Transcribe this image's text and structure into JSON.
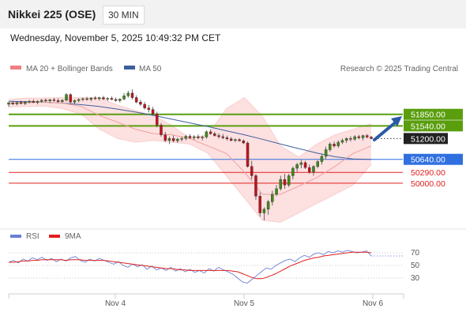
{
  "header": {
    "title": "Nikkei 225 (OSE)",
    "timeframe": "30 MIN",
    "datetime": "Wednesday, November 5, 2025 10:49:32 PM CET"
  },
  "legend": {
    "ma20": "MA 20 + Bollinger Bands",
    "ma50": "MA 50",
    "credit": "Research © 2025 Trading Central",
    "ma20_color": "#f08080",
    "ma50_color": "#3e5f9e"
  },
  "levels": [
    {
      "label": "51850.00",
      "value": 51850,
      "color": "#5a9e0e",
      "style": "green"
    },
    {
      "label": "51540.00",
      "value": 51540,
      "color": "#5a9e0e",
      "style": "green"
    },
    {
      "label": "51200.00",
      "value": 51200,
      "color": "#222222",
      "style": "current"
    },
    {
      "label": "50640.00",
      "value": 50640,
      "color": "#2f6fe0",
      "style": "blue"
    },
    {
      "label": "50290.00",
      "value": 50290,
      "color": "#e0201e",
      "style": "red"
    },
    {
      "label": "50000.00",
      "value": 50000,
      "color": "#e0201e",
      "style": "red"
    }
  ],
  "rsi_legend": {
    "rsi": "RSI",
    "ma9": "9MA",
    "rsi_color": "#6a7fd8",
    "ma9_color": "#e0201e"
  },
  "rsi_ticks": [
    "70",
    "50",
    "30"
  ],
  "x_ticks": [
    "Nov 4",
    "Nov 5",
    "Nov 6"
  ],
  "chart_data": {
    "type": "candlestick",
    "y_range": [
      48850,
      52800
    ],
    "rsi_range": [
      10,
      85
    ],
    "ma50": [
      52200,
      52190,
      52175,
      52150,
      52110,
      52060,
      51990,
      51910,
      51820,
      51720,
      51620,
      51520,
      51410,
      51300,
      51180,
      51050,
      50930,
      50810,
      50710,
      50650,
      50640
    ],
    "ma20_mid": [
      52150,
      52170,
      52180,
      52150,
      52060,
      51820,
      51640,
      51450,
      51330,
      51300,
      51200,
      51000,
      50800,
      50300,
      49700,
      49700,
      49920,
      50150,
      50450,
      50800,
      51000
    ],
    "bb_upper": [
      52250,
      52290,
      52290,
      52300,
      52300,
      52300,
      52100,
      51950,
      51820,
      51550,
      51200,
      51300,
      52000,
      52300,
      51800,
      51000,
      50700,
      51050,
      51300,
      51450,
      51600
    ],
    "bb_lower": [
      52050,
      52060,
      52070,
      52000,
      51850,
      51450,
      51200,
      51100,
      51150,
      51100,
      51050,
      50800,
      50200,
      49600,
      49000,
      48950,
      49200,
      49450,
      49700,
      49950,
      50500
    ],
    "candles": [
      [
        52120,
        52190,
        52050,
        52160
      ],
      [
        52160,
        52210,
        52100,
        52130
      ],
      [
        52130,
        52200,
        52090,
        52170
      ],
      [
        52170,
        52220,
        52120,
        52140
      ],
      [
        52140,
        52210,
        52100,
        52180
      ],
      [
        52180,
        52240,
        52140,
        52200
      ],
      [
        52200,
        52250,
        52150,
        52170
      ],
      [
        52170,
        52230,
        52120,
        52200
      ],
      [
        52200,
        52260,
        52160,
        52230
      ],
      [
        52230,
        52280,
        52180,
        52210
      ],
      [
        52210,
        52270,
        52160,
        52240
      ],
      [
        52240,
        52290,
        52190,
        52220
      ],
      [
        52220,
        52280,
        52170,
        52190
      ],
      [
        52190,
        52250,
        52150,
        52230
      ],
      [
        52230,
        52420,
        52200,
        52380
      ],
      [
        52380,
        52420,
        52150,
        52180
      ],
      [
        52180,
        52250,
        52120,
        52220
      ],
      [
        52220,
        52280,
        52170,
        52250
      ],
      [
        52250,
        52300,
        52200,
        52270
      ],
      [
        52270,
        52320,
        52220,
        52250
      ],
      [
        52250,
        52310,
        52200,
        52290
      ],
      [
        52290,
        52340,
        52240,
        52270
      ],
      [
        52270,
        52320,
        52220,
        52300
      ],
      [
        52300,
        52350,
        52240,
        52260
      ],
      [
        52260,
        52310,
        52210,
        52280
      ],
      [
        52280,
        52330,
        52230,
        52250
      ],
      [
        52250,
        52300,
        52190,
        52220
      ],
      [
        52220,
        52280,
        52170,
        52260
      ],
      [
        52260,
        52420,
        52230,
        52350
      ],
      [
        52350,
        52480,
        52300,
        52420
      ],
      [
        52420,
        52520,
        52250,
        52300
      ],
      [
        52300,
        52360,
        52150,
        52180
      ],
      [
        52180,
        52240,
        52080,
        52120
      ],
      [
        52120,
        52180,
        51980,
        52020
      ],
      [
        52020,
        52100,
        51900,
        51980
      ],
      [
        51980,
        52050,
        51820,
        51860
      ],
      [
        51860,
        51920,
        51500,
        51560
      ],
      [
        51560,
        51620,
        51250,
        51300
      ],
      [
        51300,
        51380,
        51100,
        51150
      ],
      [
        51150,
        51250,
        51050,
        51200
      ],
      [
        51200,
        51280,
        51100,
        51140
      ],
      [
        51140,
        51220,
        51080,
        51180
      ],
      [
        51180,
        51250,
        51120,
        51200
      ],
      [
        51200,
        51300,
        51150,
        51260
      ],
      [
        51260,
        51320,
        51180,
        51220
      ],
      [
        51220,
        51290,
        51160,
        51250
      ],
      [
        51250,
        51310,
        51180,
        51220
      ],
      [
        51220,
        51280,
        51150,
        51240
      ],
      [
        51240,
        51420,
        51200,
        51380
      ],
      [
        51380,
        51450,
        51300,
        51330
      ],
      [
        51330,
        51380,
        51250,
        51280
      ],
      [
        51280,
        51340,
        51200,
        51250
      ],
      [
        51250,
        51320,
        51180,
        51220
      ],
      [
        51220,
        51280,
        51150,
        51190
      ],
      [
        51190,
        51240,
        51120,
        51150
      ],
      [
        51150,
        51200,
        51100,
        51170
      ],
      [
        51170,
        51210,
        51120,
        51140
      ],
      [
        51140,
        51180,
        51050,
        51080
      ],
      [
        51080,
        51120,
        50420,
        50450
      ],
      [
        50450,
        50600,
        50100,
        50200
      ],
      [
        50200,
        50250,
        49550,
        49650
      ],
      [
        49650,
        49750,
        49100,
        49200
      ],
      [
        49200,
        49350,
        49000,
        49300
      ],
      [
        49300,
        49550,
        49150,
        49500
      ],
      [
        49500,
        49800,
        49400,
        49700
      ],
      [
        49700,
        49950,
        49650,
        49850
      ],
      [
        49850,
        50200,
        49800,
        50100
      ],
      [
        50100,
        50250,
        49850,
        49950
      ],
      [
        49950,
        50250,
        49900,
        50200
      ],
      [
        50200,
        50450,
        50100,
        50400
      ],
      [
        50400,
        50550,
        50300,
        50500
      ],
      [
        50500,
        50620,
        50400,
        50550
      ],
      [
        50550,
        50600,
        50380,
        50420
      ],
      [
        50420,
        50500,
        50250,
        50300
      ],
      [
        50300,
        50480,
        50200,
        50450
      ],
      [
        50450,
        50620,
        50400,
        50580
      ],
      [
        50580,
        50780,
        50500,
        50720
      ],
      [
        50720,
        50980,
        50650,
        50900
      ],
      [
        50900,
        51100,
        50850,
        51050
      ],
      [
        51050,
        51120,
        50950,
        51000
      ],
      [
        51000,
        51150,
        50950,
        51100
      ],
      [
        51100,
        51200,
        51050,
        51150
      ],
      [
        51150,
        51230,
        51080,
        51200
      ],
      [
        51200,
        51260,
        51120,
        51180
      ],
      [
        51180,
        51290,
        51140,
        51250
      ],
      [
        51250,
        51300,
        51180,
        51220
      ],
      [
        51220,
        51300,
        51150,
        51280
      ],
      [
        51280,
        51320,
        51200,
        51240
      ],
      [
        51240,
        51270,
        51180,
        51200
      ]
    ],
    "rsi": [
      55,
      58,
      54,
      60,
      57,
      62,
      59,
      63,
      58,
      61,
      56,
      60,
      57,
      62,
      64,
      58,
      55,
      60,
      57,
      61,
      58,
      55,
      52,
      56,
      50,
      47,
      52,
      48,
      51,
      44,
      49,
      43,
      46,
      42,
      47,
      41,
      45,
      40,
      44,
      39,
      42,
      38,
      45,
      41,
      47,
      43,
      40,
      36,
      30,
      24,
      22,
      28,
      34,
      40,
      46,
      44,
      50,
      54,
      58,
      60,
      56,
      62,
      66,
      63,
      68,
      70,
      67,
      72,
      70,
      73,
      71,
      74,
      72,
      70,
      71,
      73,
      65
    ],
    "rsi_ma9": [
      55,
      55,
      56,
      57,
      57,
      58,
      58,
      59,
      59,
      59,
      59,
      59,
      58,
      59,
      59,
      59,
      58,
      58,
      58,
      58,
      58,
      57,
      56,
      55,
      54,
      53,
      52,
      51,
      50,
      49,
      48,
      47,
      46,
      45,
      45,
      44,
      43,
      43,
      42,
      42,
      42,
      42,
      42,
      42,
      42,
      42,
      42,
      41,
      40,
      37,
      34,
      31,
      29,
      29,
      31,
      34,
      37,
      41,
      45,
      49,
      52,
      55,
      58,
      60,
      62,
      63,
      65,
      66,
      67,
      68,
      69,
      70,
      71,
      71,
      71,
      71,
      70
    ]
  }
}
